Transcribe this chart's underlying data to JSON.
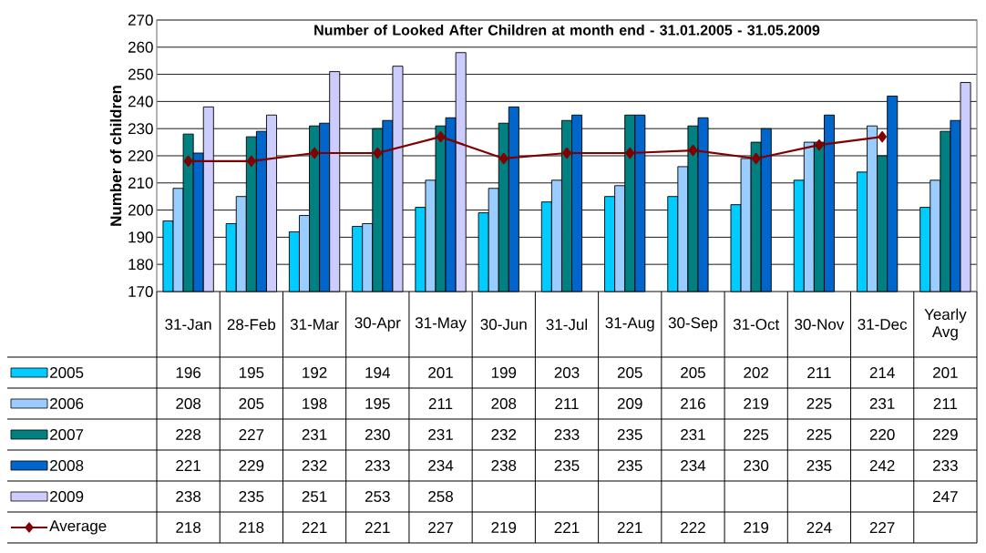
{
  "chart_data": {
    "type": "bar",
    "title": "Number of Looked After Children at month end - 31.01.2005 - 31.05.2009",
    "ylabel": "Number of children",
    "categories": [
      "31-Jan",
      "28-Feb",
      "31-Mar",
      "30-Apr",
      "31-May",
      "30-Jun",
      "31-Jul",
      "31-Aug",
      "30-Sep",
      "31-Oct",
      "30-Nov",
      "31-Dec",
      "Yearly Avg"
    ],
    "series": [
      {
        "name": "2005",
        "color": "#00ccff",
        "values": [
          196,
          195,
          192,
          194,
          201,
          199,
          203,
          205,
          205,
          202,
          211,
          214,
          201
        ]
      },
      {
        "name": "2006",
        "color": "#99ccff",
        "values": [
          208,
          205,
          198,
          195,
          211,
          208,
          211,
          209,
          216,
          219,
          225,
          231,
          211
        ]
      },
      {
        "name": "2007",
        "color": "#008080",
        "values": [
          228,
          227,
          231,
          230,
          231,
          232,
          233,
          235,
          231,
          225,
          225,
          220,
          229
        ]
      },
      {
        "name": "2008",
        "color": "#0066cc",
        "values": [
          221,
          229,
          232,
          233,
          234,
          238,
          235,
          235,
          234,
          230,
          235,
          242,
          233
        ]
      },
      {
        "name": "2009",
        "color": "#ccccff",
        "values": [
          238,
          235,
          251,
          253,
          258,
          null,
          null,
          null,
          null,
          null,
          null,
          null,
          247
        ]
      },
      {
        "name": "Average",
        "type": "line",
        "marker": "diamond",
        "color": "#800000",
        "values": [
          218,
          218,
          221,
          221,
          227,
          219,
          221,
          221,
          222,
          219,
          224,
          227,
          null
        ]
      }
    ],
    "ylim": [
      170,
      270
    ],
    "yticks": [
      170,
      180,
      190,
      200,
      210,
      220,
      230,
      240,
      250,
      260,
      270
    ],
    "grid": "y",
    "legend": "bottom left",
    "data_labels": true
  }
}
